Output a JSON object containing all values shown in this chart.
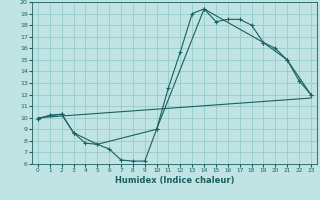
{
  "xlabel": "Humidex (Indice chaleur)",
  "bg_color": "#c0e4e4",
  "grid_color": "#98cccc",
  "line_color": "#1a6060",
  "xlim": [
    -0.5,
    23.5
  ],
  "ylim": [
    6,
    20
  ],
  "xticks": [
    0,
    1,
    2,
    3,
    4,
    5,
    6,
    7,
    8,
    9,
    10,
    11,
    12,
    13,
    14,
    15,
    16,
    17,
    18,
    19,
    20,
    21,
    22,
    23
  ],
  "yticks": [
    6,
    7,
    8,
    9,
    10,
    11,
    12,
    13,
    14,
    15,
    16,
    17,
    18,
    19,
    20
  ],
  "line1_x": [
    0,
    1,
    2,
    3,
    4,
    5,
    6,
    7,
    8,
    9,
    10,
    11,
    12,
    13,
    14,
    15,
    16,
    17,
    18,
    19,
    20,
    21,
    22,
    23
  ],
  "line1_y": [
    9.9,
    10.2,
    10.3,
    8.7,
    7.8,
    7.7,
    7.3,
    6.35,
    6.25,
    6.25,
    9.0,
    12.6,
    15.7,
    19.0,
    19.4,
    18.3,
    18.5,
    18.5,
    18.0,
    16.5,
    16.0,
    15.0,
    13.2,
    12.0
  ],
  "line2_x": [
    0,
    1,
    2,
    3,
    5,
    10,
    14,
    19,
    21,
    23
  ],
  "line2_y": [
    9.9,
    10.2,
    10.3,
    8.7,
    7.7,
    9.0,
    19.4,
    16.5,
    15.0,
    12.0
  ],
  "line3_x": [
    0,
    23
  ],
  "line3_y": [
    10.0,
    11.7
  ]
}
